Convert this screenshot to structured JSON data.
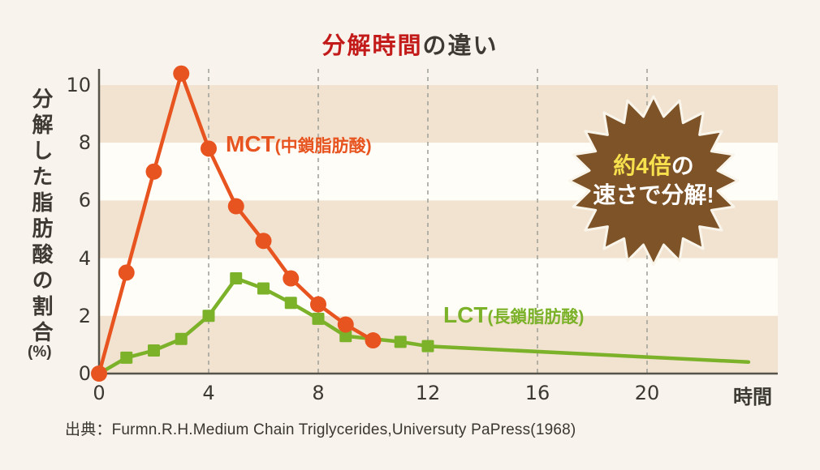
{
  "title": {
    "highlight": "分解時間",
    "rest": "の違い"
  },
  "axes": {
    "y_title": "分解した脂肪酸の割合",
    "y_unit": "(%)",
    "x_unit": "時間"
  },
  "series_labels": {
    "mct": {
      "main": "MCT",
      "sub": "(中鎖脂肪酸)"
    },
    "lct": {
      "main": "LCT",
      "sub": "(長鎖脂肪酸)"
    }
  },
  "badge": {
    "line1_highlight": "約4倍",
    "line1_rest": "の",
    "line2": "速さで分解!"
  },
  "source": "出典：Furmn.R.H.Medium Chain Triglycerides,Universuty PaPress(1968)",
  "colors": {
    "page_background": "#f8f4ed",
    "stripe_beige": "#f2e3d1",
    "stripe_white": "#fffdf8",
    "mct_orange": "#e8541f",
    "lct_green": "#7cb229",
    "title_red": "#c31a1a",
    "badge_brown": "#7d5327",
    "badge_yellow": "#f6e04d",
    "badge_outline": "#faf5eb",
    "text_dark": "#3e3a33",
    "axis": "#56534a",
    "gridline": "#a3a39b"
  },
  "chart_data": {
    "type": "line",
    "title": "分解時間の違い",
    "xlabel": "時間",
    "ylabel": "分解した脂肪酸の割合(%)",
    "x_ticks": [
      0,
      4,
      8,
      12,
      16,
      20
    ],
    "y_ticks": [
      0,
      2,
      4,
      6,
      8,
      10
    ],
    "xlim": [
      0,
      24.8
    ],
    "ylim": [
      0,
      10.6
    ],
    "grid_x_dashed": [
      4,
      8,
      12,
      16,
      20
    ],
    "background_bands": [
      {
        "from": 10,
        "to": 8,
        "color": "#f2e3d1"
      },
      {
        "from": 8,
        "to": 6,
        "color": "#fffdf8"
      },
      {
        "from": 6,
        "to": 4,
        "color": "#f2e3d1"
      },
      {
        "from": 4,
        "to": 2,
        "color": "#fffdf8"
      },
      {
        "from": 2,
        "to": 0,
        "color": "#f2e3d1"
      }
    ],
    "series": [
      {
        "name": "MCT(中鎖脂肪酸)",
        "color": "#e8541f",
        "marker": "circle",
        "points": [
          [
            0,
            0
          ],
          [
            1,
            3.5
          ],
          [
            2,
            7.0
          ],
          [
            3,
            10.4
          ],
          [
            4,
            7.8
          ],
          [
            5,
            5.8
          ],
          [
            6,
            4.6
          ],
          [
            7,
            3.3
          ],
          [
            8,
            2.4
          ],
          [
            9,
            1.7
          ],
          [
            10,
            1.15
          ]
        ]
      },
      {
        "name": "LCT(長鎖脂肪酸)",
        "color": "#7cb229",
        "marker": "square",
        "last_point_no_marker": true,
        "points": [
          [
            0,
            0
          ],
          [
            1,
            0.55
          ],
          [
            2,
            0.8
          ],
          [
            3,
            1.2
          ],
          [
            4,
            2.0
          ],
          [
            5,
            3.3
          ],
          [
            6,
            2.95
          ],
          [
            7,
            2.45
          ],
          [
            8,
            1.9
          ],
          [
            9,
            1.3
          ],
          [
            11,
            1.1
          ],
          [
            12,
            0.95
          ],
          [
            23.7,
            0.4
          ]
        ]
      }
    ],
    "annotation": "約4倍の速さで分解!",
    "legend_position": "inline-labels",
    "grid": "vertical-dashed-only"
  }
}
